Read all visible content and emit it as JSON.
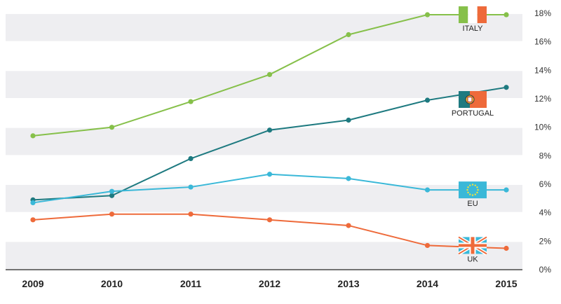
{
  "chart_data": {
    "type": "line",
    "title": "",
    "xlabel": "",
    "ylabel": "",
    "x": [
      "2009",
      "2010",
      "2011",
      "2012",
      "2013",
      "2014",
      "2015"
    ],
    "ylim": [
      0,
      18
    ],
    "yticks": [
      0,
      2,
      4,
      6,
      8,
      10,
      12,
      14,
      16,
      18
    ],
    "ytick_labels": [
      "0%",
      "2%",
      "4%",
      "6%",
      "8%",
      "10%",
      "12%",
      "14%",
      "16%",
      "18%"
    ],
    "y_axis_position": "right",
    "banded_background": true,
    "legend": "inline labels with flags near right end of each line",
    "series": [
      {
        "name": "ITALY",
        "color": "#86c04a",
        "flag": "italy-flag",
        "values": [
          9.4,
          10.0,
          11.8,
          13.7,
          16.5,
          17.9,
          17.9
        ]
      },
      {
        "name": "PORTUGAL",
        "color": "#1e7a80",
        "flag": "portugal-flag",
        "values": [
          4.9,
          5.2,
          7.8,
          9.8,
          10.5,
          11.9,
          12.8
        ]
      },
      {
        "name": "EU",
        "color": "#3ab8d8",
        "flag": "eu-flag",
        "values": [
          4.7,
          5.5,
          5.8,
          6.7,
          6.4,
          5.6,
          5.6
        ]
      },
      {
        "name": "UK",
        "color": "#ee6a3a",
        "flag": "uk-flag",
        "values": [
          3.5,
          3.9,
          3.9,
          3.5,
          3.1,
          1.7,
          1.5
        ]
      }
    ]
  }
}
